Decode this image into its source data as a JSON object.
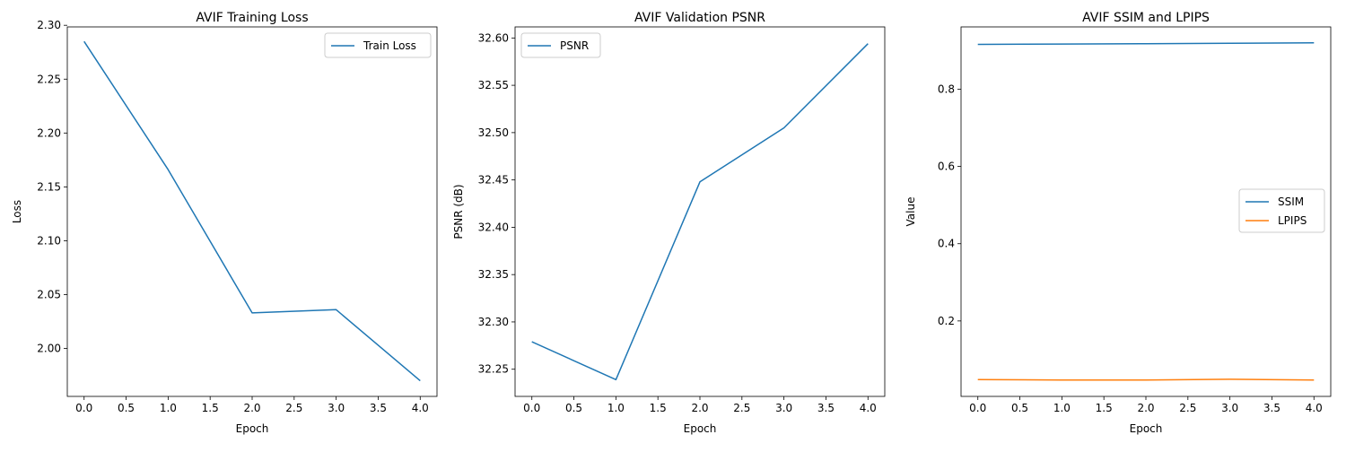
{
  "chart_data": [
    {
      "type": "line",
      "title": "AVIF Training Loss",
      "xlabel": "Epoch",
      "ylabel": "Loss",
      "xlim": [
        -0.2,
        4.2
      ],
      "ylim": [
        1.9555,
        2.2985
      ],
      "x_ticks": [
        0.0,
        0.5,
        1.0,
        1.5,
        2.0,
        2.5,
        3.0,
        3.5,
        4.0
      ],
      "x_tick_labels": [
        "0.0",
        "0.5",
        "1.0",
        "1.5",
        "2.0",
        "2.5",
        "3.0",
        "3.5",
        "4.0"
      ],
      "y_ticks": [
        2.0,
        2.05,
        2.1,
        2.15,
        2.2,
        2.25,
        2.3
      ],
      "y_tick_labels": [
        "2.00",
        "2.05",
        "2.10",
        "2.15",
        "2.20",
        "2.25",
        "2.30"
      ],
      "legend": "top-right",
      "grid": false,
      "x": [
        0,
        1,
        2,
        3,
        4
      ],
      "series": [
        {
          "name": "Train Loss",
          "color": "#1f77b4",
          "values": [
            2.285,
            2.166,
            2.033,
            2.036,
            1.97
          ]
        }
      ]
    },
    {
      "type": "line",
      "title": "AVIF Validation PSNR",
      "xlabel": "Epoch",
      "ylabel": "PSNR (dB)",
      "xlim": [
        -0.2,
        4.2
      ],
      "ylim": [
        32.2213,
        32.6117
      ],
      "x_ticks": [
        0.0,
        0.5,
        1.0,
        1.5,
        2.0,
        2.5,
        3.0,
        3.5,
        4.0
      ],
      "x_tick_labels": [
        "0.0",
        "0.5",
        "1.0",
        "1.5",
        "2.0",
        "2.5",
        "3.0",
        "3.5",
        "4.0"
      ],
      "y_ticks": [
        32.25,
        32.3,
        32.35,
        32.4,
        32.45,
        32.5,
        32.55,
        32.6
      ],
      "y_tick_labels": [
        "32.25",
        "32.30",
        "32.35",
        "32.40",
        "32.45",
        "32.50",
        "32.55",
        "32.60"
      ],
      "legend": "top-left",
      "grid": false,
      "x": [
        0,
        1,
        2,
        3,
        4
      ],
      "series": [
        {
          "name": "PSNR",
          "color": "#1f77b4",
          "values": [
            32.279,
            32.239,
            32.448,
            32.505,
            32.594
          ]
        }
      ]
    },
    {
      "type": "line",
      "title": "AVIF SSIM and LPIPS",
      "xlabel": "Epoch",
      "ylabel": "Value",
      "xlim": [
        -0.2,
        4.2
      ],
      "ylim": [
        0.0046,
        0.9614
      ],
      "x_ticks": [
        0.0,
        0.5,
        1.0,
        1.5,
        2.0,
        2.5,
        3.0,
        3.5,
        4.0
      ],
      "x_tick_labels": [
        "0.0",
        "0.5",
        "1.0",
        "1.5",
        "2.0",
        "2.5",
        "3.0",
        "3.5",
        "4.0"
      ],
      "y_ticks": [
        0.2,
        0.4,
        0.6,
        0.8
      ],
      "y_tick_labels": [
        "0.2",
        "0.4",
        "0.6",
        "0.8"
      ],
      "legend": "center-right",
      "grid": false,
      "x": [
        0,
        1,
        2,
        3,
        4
      ],
      "series": [
        {
          "name": "SSIM",
          "color": "#1f77b4",
          "values": [
            0.916,
            0.917,
            0.918,
            0.919,
            0.92
          ]
        },
        {
          "name": "LPIPS",
          "color": "#ff7f0e",
          "values": [
            0.048,
            0.047,
            0.047,
            0.049,
            0.047
          ]
        }
      ]
    }
  ]
}
